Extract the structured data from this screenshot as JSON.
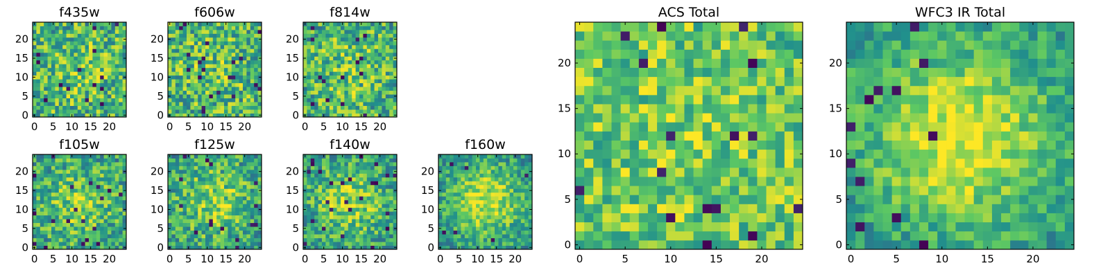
{
  "figure": {
    "colormap": "viridis",
    "colormap_stops": [
      "#440154",
      "#3b528b",
      "#21908c",
      "#5dc863",
      "#fde725"
    ]
  },
  "chart_data": [
    {
      "type": "heatmap",
      "title": "f435w",
      "grid": false,
      "image_size": [
        25,
        25
      ],
      "xticks": [
        "0",
        "5",
        "10",
        "15",
        "20"
      ],
      "yticks": [
        "0",
        "5",
        "10",
        "15",
        "20"
      ],
      "values_description": "noise",
      "value_range": [
        0.35,
        1.0
      ],
      "center_bright": 0.1,
      "dark_fraction": 0.025,
      "seed": 11
    },
    {
      "type": "heatmap",
      "title": "f606w",
      "grid": false,
      "image_size": [
        25,
        25
      ],
      "xticks": [
        "0",
        "5",
        "10",
        "15",
        "20"
      ],
      "yticks": [
        "0",
        "5",
        "10",
        "15",
        "20"
      ],
      "value_range": [
        0.35,
        1.0
      ],
      "center_bright": 0.1,
      "dark_fraction": 0.035,
      "seed": 23
    },
    {
      "type": "heatmap",
      "title": "f814w",
      "grid": false,
      "image_size": [
        25,
        25
      ],
      "xticks": [
        "0",
        "5",
        "10",
        "15",
        "20"
      ],
      "yticks": [
        "0",
        "5",
        "10",
        "15",
        "20"
      ],
      "value_range": [
        0.35,
        1.0
      ],
      "center_bright": 0.12,
      "dark_fraction": 0.03,
      "seed": 37
    },
    {
      "type": "heatmap",
      "title": "f105w",
      "grid": false,
      "image_size": [
        25,
        25
      ],
      "xticks": [
        "0",
        "5",
        "10",
        "15",
        "20"
      ],
      "yticks": [
        "0",
        "5",
        "10",
        "15",
        "20"
      ],
      "value_range": [
        0.3,
        1.0
      ],
      "center_bright": 0.25,
      "dark_fraction": 0.035,
      "seed": 41
    },
    {
      "type": "heatmap",
      "title": "f125w",
      "grid": false,
      "image_size": [
        25,
        25
      ],
      "xticks": [
        "0",
        "5",
        "10",
        "15",
        "20"
      ],
      "yticks": [
        "0",
        "5",
        "10",
        "15",
        "20"
      ],
      "value_range": [
        0.3,
        1.0
      ],
      "center_bright": 0.25,
      "dark_fraction": 0.025,
      "seed": 53
    },
    {
      "type": "heatmap",
      "title": "f140w",
      "grid": false,
      "image_size": [
        25,
        25
      ],
      "xticks": [
        "0",
        "5",
        "10",
        "15",
        "20"
      ],
      "yticks": [
        "0",
        "5",
        "10",
        "15",
        "20"
      ],
      "value_range": [
        0.3,
        1.0
      ],
      "center_bright": 0.3,
      "dark_fraction": 0.03,
      "seed": 67
    },
    {
      "type": "heatmap",
      "title": "f160w",
      "grid": false,
      "image_size": [
        25,
        25
      ],
      "xticks": [
        "0",
        "5",
        "10",
        "15",
        "20"
      ],
      "yticks": [
        "0",
        "5",
        "10",
        "15",
        "20"
      ],
      "value_range": [
        0.3,
        1.0
      ],
      "center_bright": 0.4,
      "dark_fraction": 0.02,
      "seed": 79
    },
    {
      "type": "heatmap",
      "title": "ACS Total",
      "grid": false,
      "image_size": [
        25,
        25
      ],
      "xticks": [
        "0",
        "5",
        "10",
        "15",
        "20"
      ],
      "yticks": [
        "0",
        "5",
        "10",
        "15",
        "20"
      ],
      "value_range": [
        0.5,
        1.0
      ],
      "center_bright": 0.05,
      "dark_fraction": 0.03,
      "seed": 97
    },
    {
      "type": "heatmap",
      "title": "WFC3 IR Total",
      "grid": false,
      "image_size": [
        25,
        25
      ],
      "xticks": [
        "0",
        "5",
        "10",
        "15",
        "20"
      ],
      "yticks": [
        "0",
        "5",
        "10",
        "15",
        "20"
      ],
      "value_range": [
        0.35,
        1.0
      ],
      "center_bright": 0.45,
      "dark_fraction": 0.02,
      "seed": 113
    }
  ]
}
